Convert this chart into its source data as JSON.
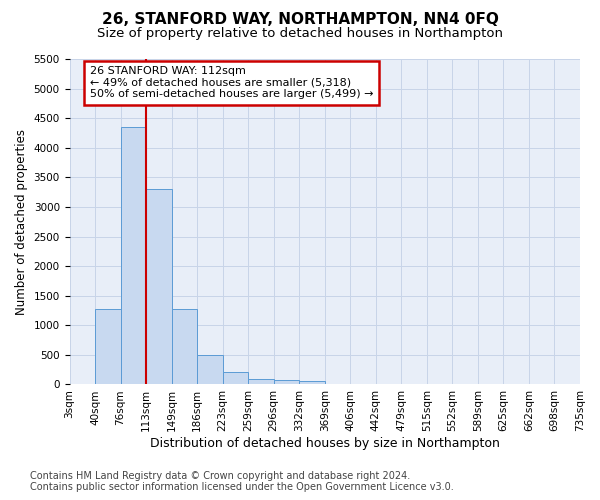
{
  "title": "26, STANFORD WAY, NORTHAMPTON, NN4 0FQ",
  "subtitle": "Size of property relative to detached houses in Northampton",
  "xlabel": "Distribution of detached houses by size in Northampton",
  "ylabel": "Number of detached properties",
  "footer_line1": "Contains HM Land Registry data © Crown copyright and database right 2024.",
  "footer_line2": "Contains public sector information licensed under the Open Government Licence v3.0.",
  "bin_labels": [
    "3sqm",
    "40sqm",
    "76sqm",
    "113sqm",
    "149sqm",
    "186sqm",
    "223sqm",
    "259sqm",
    "296sqm",
    "332sqm",
    "369sqm",
    "406sqm",
    "442sqm",
    "479sqm",
    "515sqm",
    "552sqm",
    "589sqm",
    "625sqm",
    "662sqm",
    "698sqm",
    "735sqm"
  ],
  "bar_values": [
    0,
    1270,
    4350,
    3300,
    1270,
    490,
    215,
    90,
    75,
    60,
    0,
    0,
    0,
    0,
    0,
    0,
    0,
    0,
    0,
    0
  ],
  "bar_color": "#c8d9f0",
  "bar_edge_color": "#5b9bd5",
  "grid_color": "#c8d4e8",
  "background_color": "#e8eef8",
  "red_line_x": 3,
  "annotation_text": "26 STANFORD WAY: 112sqm\n← 49% of detached houses are smaller (5,318)\n50% of semi-detached houses are larger (5,499) →",
  "annotation_box_color": "#ffffff",
  "annotation_box_edge": "#cc0000",
  "ylim": [
    0,
    5500
  ],
  "yticks": [
    0,
    500,
    1000,
    1500,
    2000,
    2500,
    3000,
    3500,
    4000,
    4500,
    5000,
    5500
  ],
  "title_fontsize": 11,
  "subtitle_fontsize": 9.5,
  "xlabel_fontsize": 9,
  "ylabel_fontsize": 8.5,
  "tick_fontsize": 7.5,
  "annotation_fontsize": 8,
  "footer_fontsize": 7
}
